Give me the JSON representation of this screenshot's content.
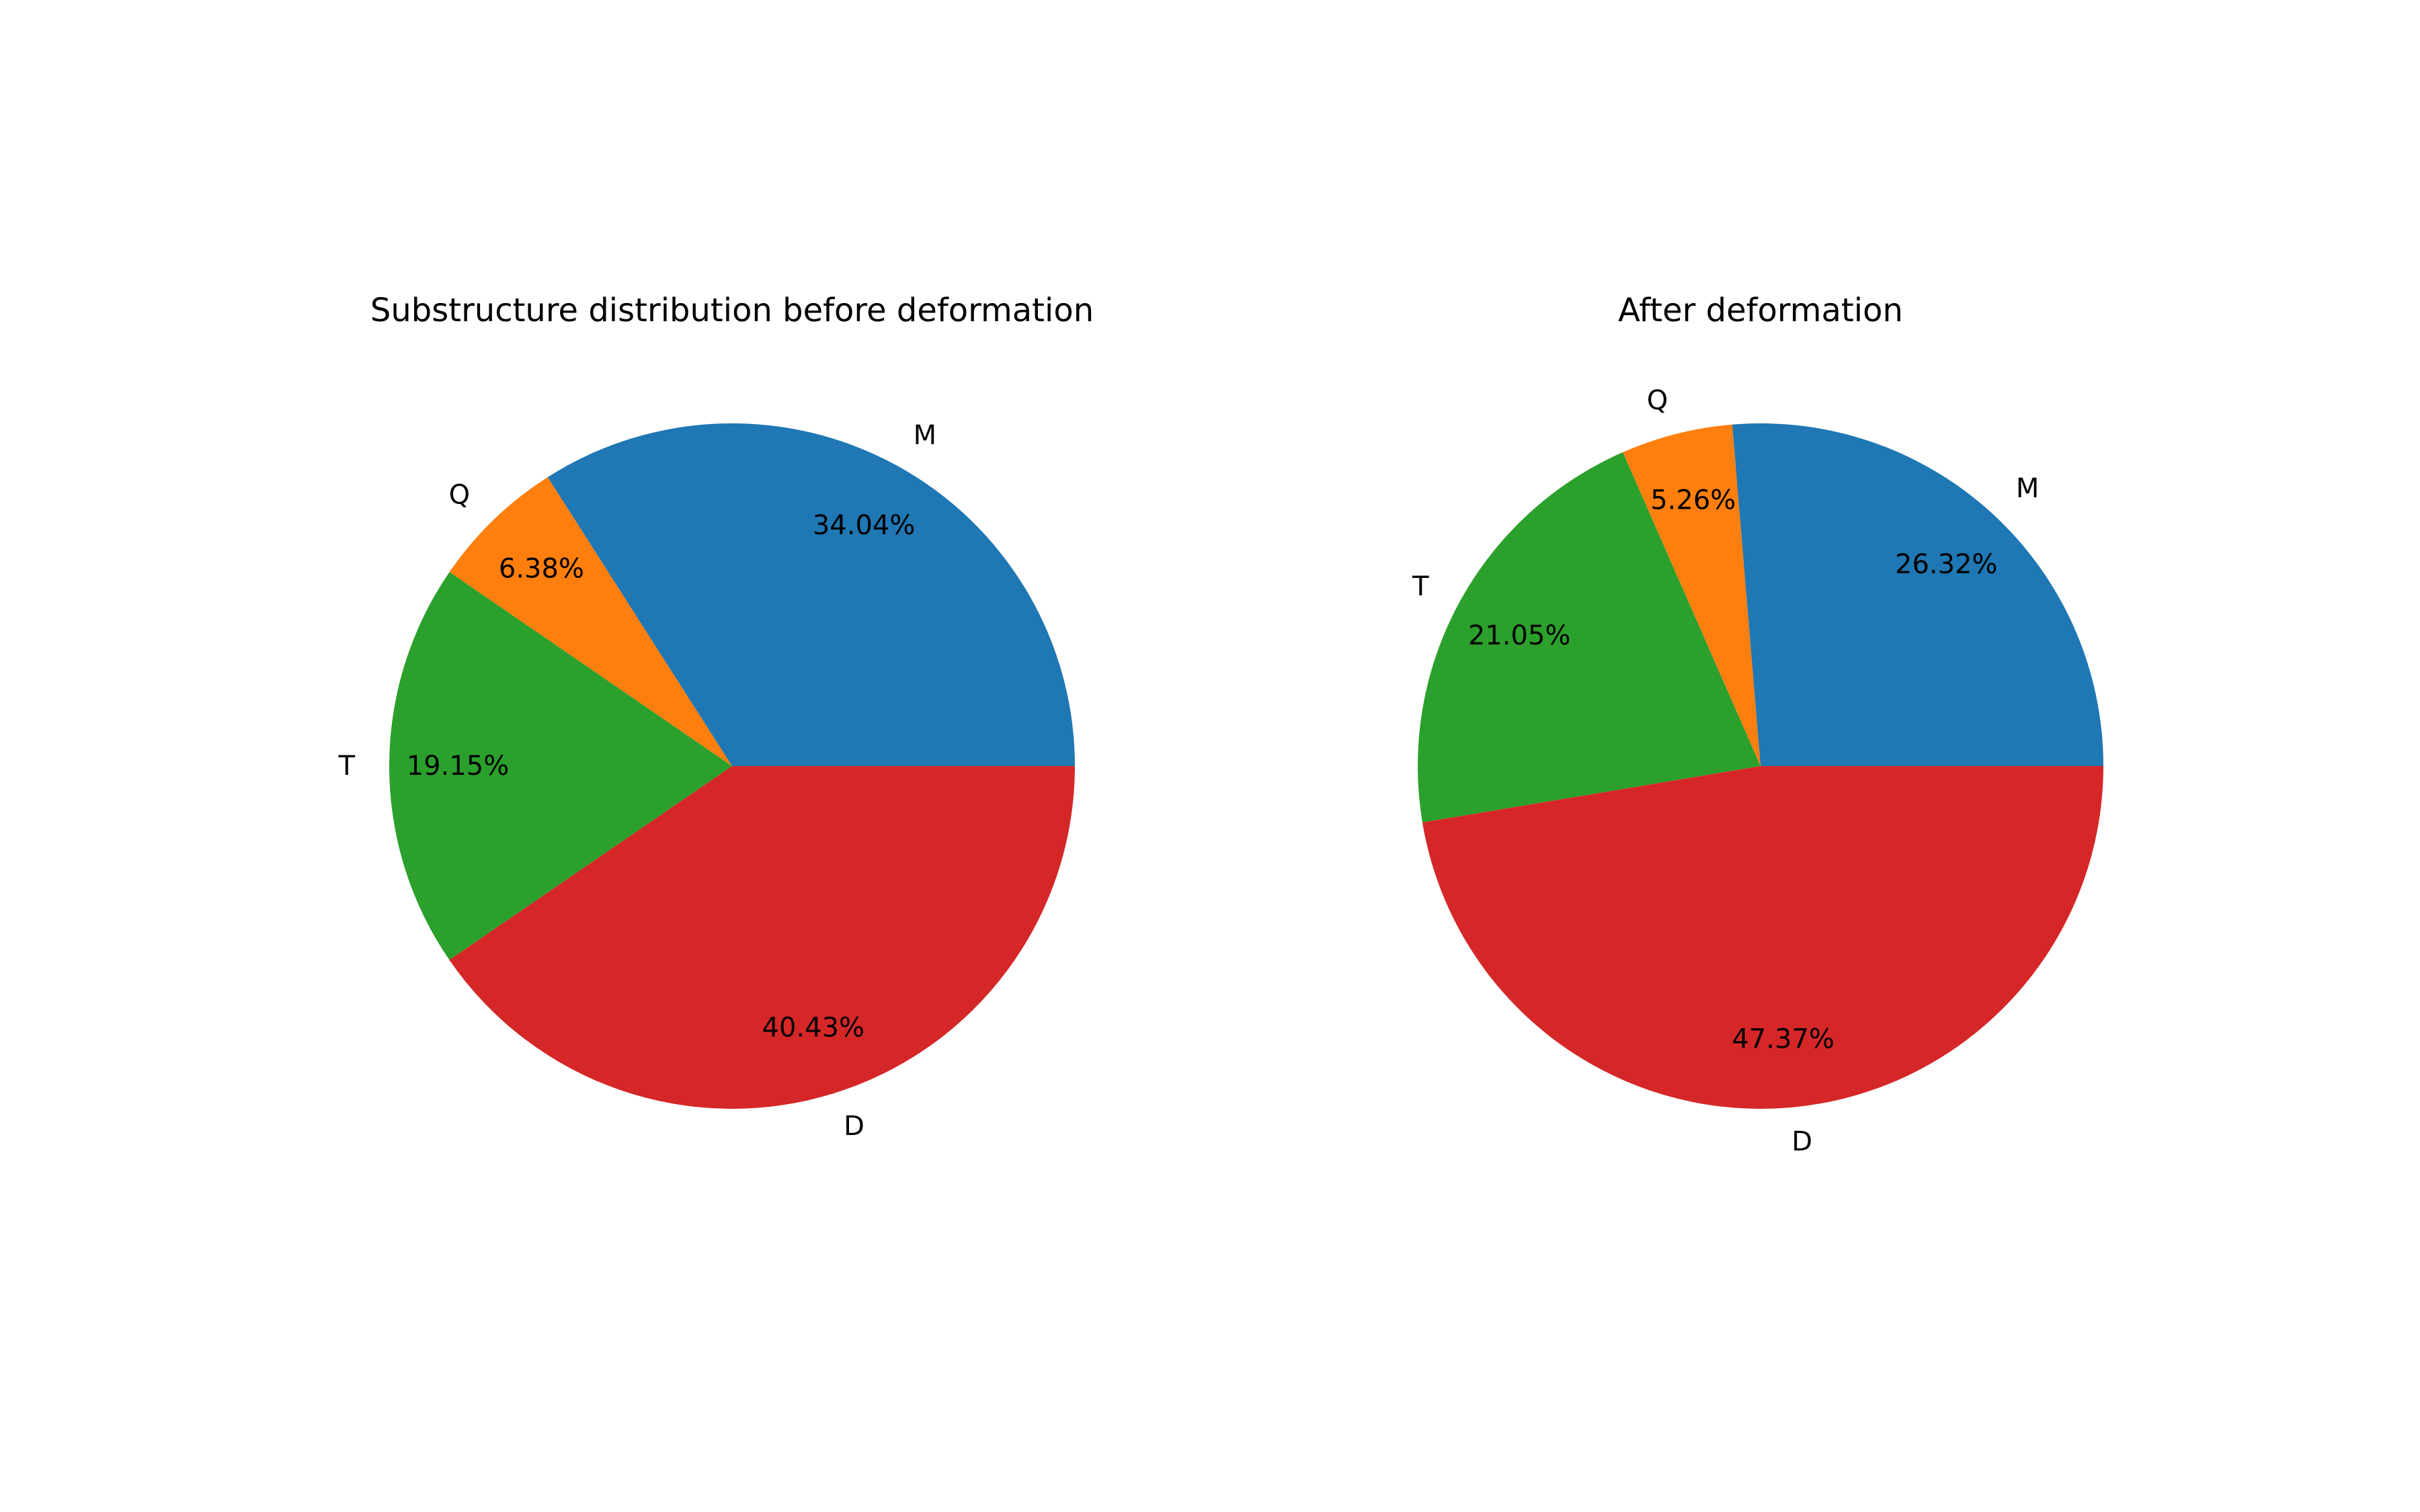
{
  "colors": {
    "M": "#1f77b4",
    "Q": "#ff7f0e",
    "T": "#2ca02c",
    "D": "#d62728"
  },
  "chart_data": [
    {
      "type": "pie",
      "title": "Substructure distribution before deformation",
      "labels": [
        "M",
        "Q",
        "T",
        "D"
      ],
      "values": [
        34.04,
        6.38,
        19.15,
        40.43
      ],
      "pct_labels": [
        "34.04%",
        "6.38%",
        "19.15%",
        "40.43%"
      ],
      "start_angle_deg": 0,
      "direction": "counterclockwise"
    },
    {
      "type": "pie",
      "title": "After deformation",
      "labels": [
        "M",
        "Q",
        "T",
        "D"
      ],
      "values": [
        26.32,
        5.26,
        21.05,
        47.37
      ],
      "pct_labels": [
        "26.32%",
        "5.26%",
        "21.05%",
        "47.37%"
      ],
      "start_angle_deg": 0,
      "direction": "counterclockwise"
    }
  ]
}
